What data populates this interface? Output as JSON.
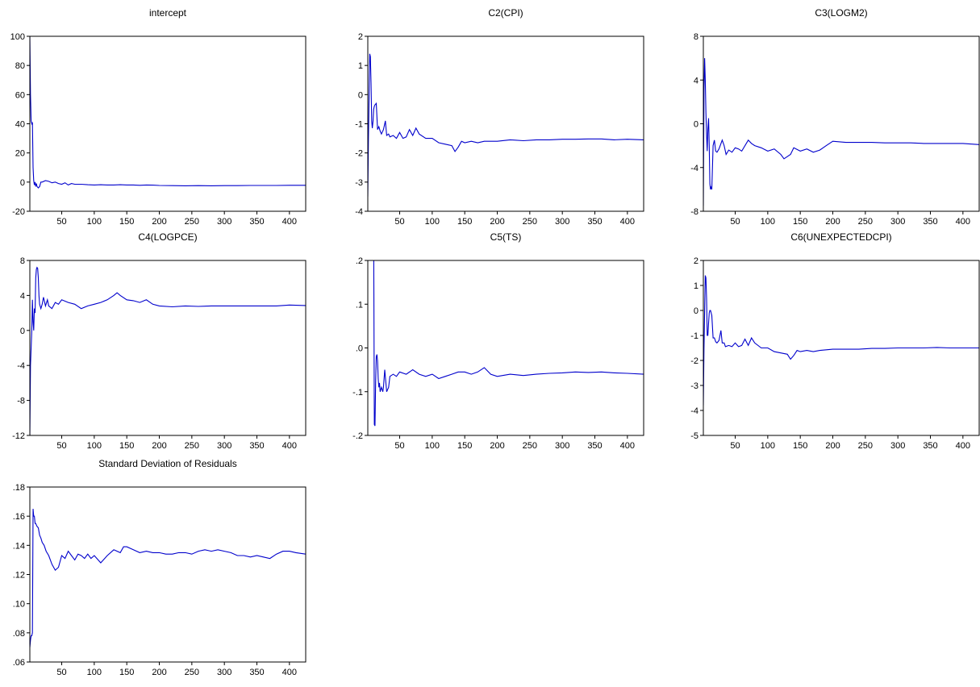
{
  "chart_data": [
    {
      "type": "line",
      "title": "intercept",
      "xlim": [
        1,
        425
      ],
      "ylim": [
        -20,
        100
      ],
      "xticks": [
        50,
        100,
        150,
        200,
        250,
        300,
        350,
        400
      ],
      "yticks": [
        -20,
        0,
        20,
        40,
        60,
        80,
        100
      ],
      "ytick_labels": [
        "-20",
        "0",
        "20",
        "40",
        "60",
        "80",
        "100"
      ],
      "line_color": "#0000cc",
      "x": [
        1,
        2,
        3,
        4,
        5,
        6,
        7,
        8,
        9,
        10,
        11,
        12,
        14,
        16,
        18,
        20,
        25,
        30,
        35,
        40,
        45,
        50,
        55,
        60,
        65,
        70,
        80,
        90,
        100,
        110,
        120,
        130,
        140,
        150,
        160,
        170,
        180,
        190,
        200,
        220,
        240,
        260,
        280,
        300,
        320,
        340,
        360,
        380,
        400,
        425
      ],
      "y": [
        100,
        60,
        42,
        40,
        41,
        10,
        1,
        -2,
        0,
        -3,
        -1,
        -3,
        -4,
        -3,
        0,
        0,
        1,
        0.5,
        -0.5,
        0,
        -1,
        -1.5,
        -0.5,
        -2,
        -1,
        -1.5,
        -1.5,
        -1.8,
        -2,
        -1.8,
        -2,
        -2,
        -1.8,
        -2,
        -2,
        -2.2,
        -2,
        -2.1,
        -2.3,
        -2.4,
        -2.5,
        -2.4,
        -2.5,
        -2.4,
        -2.4,
        -2.3,
        -2.3,
        -2.3,
        -2.2,
        -2.2
      ]
    },
    {
      "type": "line",
      "title": "C2(CPI)",
      "xlim": [
        1,
        425
      ],
      "ylim": [
        -4,
        2
      ],
      "xticks": [
        50,
        100,
        150,
        200,
        250,
        300,
        350,
        400
      ],
      "yticks": [
        -4,
        -3,
        -2,
        -1,
        0,
        1,
        2
      ],
      "ytick_labels": [
        "-4",
        "-3",
        "-2",
        "-1",
        "0",
        "1",
        "2"
      ],
      "line_color": "#0000cc",
      "x": [
        1,
        2,
        4,
        5,
        6,
        7,
        8,
        9,
        10,
        11,
        12,
        14,
        16,
        18,
        20,
        22,
        25,
        28,
        30,
        33,
        35,
        40,
        45,
        50,
        55,
        60,
        65,
        70,
        75,
        80,
        90,
        100,
        110,
        120,
        130,
        135,
        140,
        145,
        150,
        160,
        170,
        180,
        200,
        220,
        240,
        260,
        280,
        300,
        320,
        340,
        360,
        380,
        400,
        425
      ],
      "y": [
        -3.5,
        -1.5,
        1.4,
        1.3,
        0.4,
        -0.9,
        -1.15,
        -0.9,
        -0.5,
        -0.4,
        -0.35,
        -0.3,
        -1.2,
        -1.1,
        -1.25,
        -1.35,
        -1.2,
        -0.9,
        -1.4,
        -1.35,
        -1.45,
        -1.4,
        -1.5,
        -1.3,
        -1.5,
        -1.45,
        -1.2,
        -1.4,
        -1.15,
        -1.35,
        -1.5,
        -1.5,
        -1.65,
        -1.7,
        -1.75,
        -1.95,
        -1.8,
        -1.6,
        -1.65,
        -1.6,
        -1.65,
        -1.6,
        -1.6,
        -1.55,
        -1.58,
        -1.55,
        -1.55,
        -1.53,
        -1.53,
        -1.52,
        -1.52,
        -1.55,
        -1.53,
        -1.55
      ]
    },
    {
      "type": "line",
      "title": "C3(LOGM2)",
      "xlim": [
        1,
        425
      ],
      "ylim": [
        -8,
        8
      ],
      "xticks": [
        50,
        100,
        150,
        200,
        250,
        300,
        350,
        400
      ],
      "yticks": [
        -8,
        -4,
        0,
        4,
        8
      ],
      "ytick_labels": [
        "-8",
        "-4",
        "0",
        "4",
        "8"
      ],
      "line_color": "#0000cc",
      "x": [
        1,
        2,
        3,
        4,
        5,
        6,
        7,
        8,
        9,
        10,
        11,
        12,
        13,
        14,
        16,
        18,
        20,
        22,
        25,
        30,
        33,
        36,
        40,
        45,
        50,
        55,
        60,
        70,
        75,
        80,
        90,
        100,
        110,
        120,
        125,
        130,
        135,
        140,
        150,
        160,
        170,
        180,
        190,
        200,
        220,
        240,
        260,
        280,
        300,
        320,
        340,
        360,
        380,
        400,
        425
      ],
      "y": [
        -7.5,
        3,
        6,
        4,
        1,
        -1,
        -2.5,
        -0.5,
        0.5,
        -2,
        -5.5,
        -6,
        -5.8,
        -6,
        -2,
        -1.5,
        -2.5,
        -2.6,
        -2.3,
        -1.5,
        -2,
        -2.8,
        -2.4,
        -2.6,
        -2.2,
        -2.3,
        -2.5,
        -1.5,
        -1.8,
        -2,
        -2.2,
        -2.5,
        -2.3,
        -2.8,
        -3.2,
        -3,
        -2.8,
        -2.2,
        -2.5,
        -2.3,
        -2.6,
        -2.4,
        -2,
        -1.6,
        -1.7,
        -1.7,
        -1.7,
        -1.75,
        -1.75,
        -1.75,
        -1.8,
        -1.8,
        -1.8,
        -1.8,
        -1.9
      ]
    },
    {
      "type": "line",
      "title": "C4(LOGPCE)",
      "xlim": [
        1,
        425
      ],
      "ylim": [
        -12,
        8
      ],
      "xticks": [
        50,
        100,
        150,
        200,
        250,
        300,
        350,
        400
      ],
      "yticks": [
        -12,
        -8,
        -4,
        0,
        4,
        8
      ],
      "ytick_labels": [
        "-12",
        "-8",
        "-4",
        "0",
        "4",
        "8"
      ],
      "line_color": "#0000cc",
      "x": [
        1,
        2,
        3,
        4,
        5,
        6,
        7,
        8,
        9,
        10,
        11,
        12,
        13,
        14,
        15,
        16,
        18,
        20,
        22,
        25,
        28,
        30,
        35,
        40,
        45,
        50,
        60,
        70,
        80,
        90,
        100,
        110,
        120,
        130,
        135,
        140,
        150,
        160,
        170,
        180,
        190,
        200,
        220,
        240,
        260,
        280,
        300,
        320,
        340,
        360,
        380,
        400,
        425
      ],
      "y": [
        -12,
        -4,
        -2,
        0,
        3.5,
        1,
        0,
        2.5,
        2,
        6,
        7,
        7.2,
        7.1,
        6,
        4,
        3,
        2.5,
        3,
        3.8,
        2.8,
        3.5,
        2.8,
        2.5,
        3.2,
        3,
        3.5,
        3.2,
        3,
        2.5,
        2.8,
        3,
        3.2,
        3.5,
        4,
        4.3,
        4,
        3.5,
        3.4,
        3.2,
        3.5,
        3,
        2.8,
        2.7,
        2.8,
        2.75,
        2.8,
        2.8,
        2.8,
        2.8,
        2.8,
        2.8,
        2.9,
        2.85
      ]
    },
    {
      "type": "line",
      "title": "C5(TS)",
      "xlim": [
        1,
        425
      ],
      "ylim": [
        -0.2,
        0.2
      ],
      "xticks": [
        50,
        100,
        150,
        200,
        250,
        300,
        350,
        400
      ],
      "yticks": [
        -0.2,
        -0.1,
        0.0,
        0.1,
        0.2
      ],
      "ytick_labels": [
        "-.2",
        "-.1",
        ".0",
        ".1",
        ".2"
      ],
      "line_color": "#0000cc",
      "x": [
        10,
        11,
        12,
        13,
        14,
        15,
        16,
        17,
        18,
        19,
        20,
        22,
        24,
        25,
        27,
        30,
        33,
        35,
        40,
        45,
        50,
        60,
        70,
        80,
        90,
        100,
        110,
        120,
        130,
        140,
        150,
        160,
        170,
        180,
        190,
        200,
        220,
        240,
        260,
        280,
        300,
        320,
        340,
        360,
        380,
        400,
        425
      ],
      "y": [
        0.25,
        -0.175,
        -0.178,
        -0.08,
        -0.02,
        -0.015,
        -0.03,
        -0.07,
        -0.09,
        -0.08,
        -0.1,
        -0.09,
        -0.1,
        -0.09,
        -0.05,
        -0.1,
        -0.09,
        -0.065,
        -0.06,
        -0.065,
        -0.055,
        -0.06,
        -0.05,
        -0.06,
        -0.065,
        -0.06,
        -0.07,
        -0.065,
        -0.06,
        -0.055,
        -0.055,
        -0.06,
        -0.055,
        -0.045,
        -0.06,
        -0.065,
        -0.06,
        -0.063,
        -0.06,
        -0.058,
        -0.057,
        -0.055,
        -0.056,
        -0.055,
        -0.057,
        -0.058,
        -0.06
      ]
    },
    {
      "type": "line",
      "title": "C6(UNEXPECTEDCPI)",
      "xlim": [
        1,
        425
      ],
      "ylim": [
        -5,
        2
      ],
      "xticks": [
        50,
        100,
        150,
        200,
        250,
        300,
        350,
        400
      ],
      "yticks": [
        -5,
        -4,
        -3,
        -2,
        -1,
        0,
        1,
        2
      ],
      "ytick_labels": [
        "-5",
        "-4",
        "-3",
        "-2",
        "-1",
        "0",
        "1",
        "2"
      ],
      "line_color": "#0000cc",
      "x": [
        1,
        2,
        4,
        5,
        6,
        7,
        8,
        9,
        10,
        11,
        12,
        14,
        16,
        18,
        20,
        22,
        25,
        28,
        30,
        33,
        35,
        40,
        45,
        50,
        55,
        60,
        65,
        70,
        75,
        80,
        90,
        100,
        110,
        120,
        130,
        135,
        140,
        145,
        150,
        160,
        170,
        180,
        200,
        220,
        240,
        260,
        280,
        300,
        320,
        340,
        360,
        380,
        400,
        425
      ],
      "y": [
        -3.8,
        -1.5,
        1.4,
        1.3,
        0.5,
        -1,
        -1,
        -0.5,
        -0.1,
        0,
        0,
        -0.2,
        -1.1,
        -1.1,
        -1.25,
        -1.3,
        -1.2,
        -0.8,
        -1.3,
        -1.3,
        -1.45,
        -1.4,
        -1.45,
        -1.3,
        -1.45,
        -1.4,
        -1.15,
        -1.4,
        -1.1,
        -1.3,
        -1.5,
        -1.5,
        -1.65,
        -1.7,
        -1.75,
        -1.95,
        -1.8,
        -1.6,
        -1.65,
        -1.6,
        -1.65,
        -1.6,
        -1.55,
        -1.55,
        -1.55,
        -1.52,
        -1.52,
        -1.5,
        -1.5,
        -1.5,
        -1.48,
        -1.5,
        -1.5,
        -1.5
      ]
    },
    {
      "type": "line",
      "title": "Standard Deviation of Residuals",
      "xlim": [
        1,
        425
      ],
      "ylim": [
        0.06,
        0.18
      ],
      "xticks": [
        50,
        100,
        150,
        200,
        250,
        300,
        350,
        400
      ],
      "yticks": [
        0.06,
        0.08,
        0.1,
        0.12,
        0.14,
        0.16,
        0.18
      ],
      "ytick_labels": [
        ".06",
        ".08",
        ".10",
        ".12",
        ".14",
        ".16",
        ".18"
      ],
      "line_color": "#0000cc",
      "x": [
        1,
        2,
        3,
        4,
        5,
        6,
        7,
        8,
        9,
        10,
        12,
        14,
        16,
        18,
        20,
        23,
        26,
        30,
        35,
        40,
        45,
        50,
        55,
        60,
        65,
        70,
        75,
        80,
        85,
        90,
        95,
        100,
        110,
        120,
        130,
        140,
        145,
        150,
        160,
        170,
        180,
        190,
        200,
        210,
        220,
        230,
        240,
        250,
        260,
        270,
        280,
        290,
        300,
        310,
        320,
        330,
        340,
        350,
        360,
        370,
        380,
        390,
        400,
        410,
        425
      ],
      "y": [
        0.07,
        0.075,
        0.078,
        0.078,
        0.08,
        0.165,
        0.16,
        0.16,
        0.155,
        0.155,
        0.153,
        0.152,
        0.147,
        0.145,
        0.142,
        0.14,
        0.136,
        0.133,
        0.127,
        0.123,
        0.125,
        0.133,
        0.131,
        0.136,
        0.133,
        0.13,
        0.134,
        0.133,
        0.131,
        0.134,
        0.131,
        0.133,
        0.128,
        0.133,
        0.137,
        0.135,
        0.139,
        0.139,
        0.137,
        0.135,
        0.136,
        0.135,
        0.135,
        0.134,
        0.134,
        0.135,
        0.135,
        0.134,
        0.136,
        0.137,
        0.136,
        0.137,
        0.136,
        0.135,
        0.133,
        0.133,
        0.132,
        0.133,
        0.132,
        0.131,
        0.134,
        0.136,
        0.136,
        0.135,
        0.134
      ]
    }
  ]
}
